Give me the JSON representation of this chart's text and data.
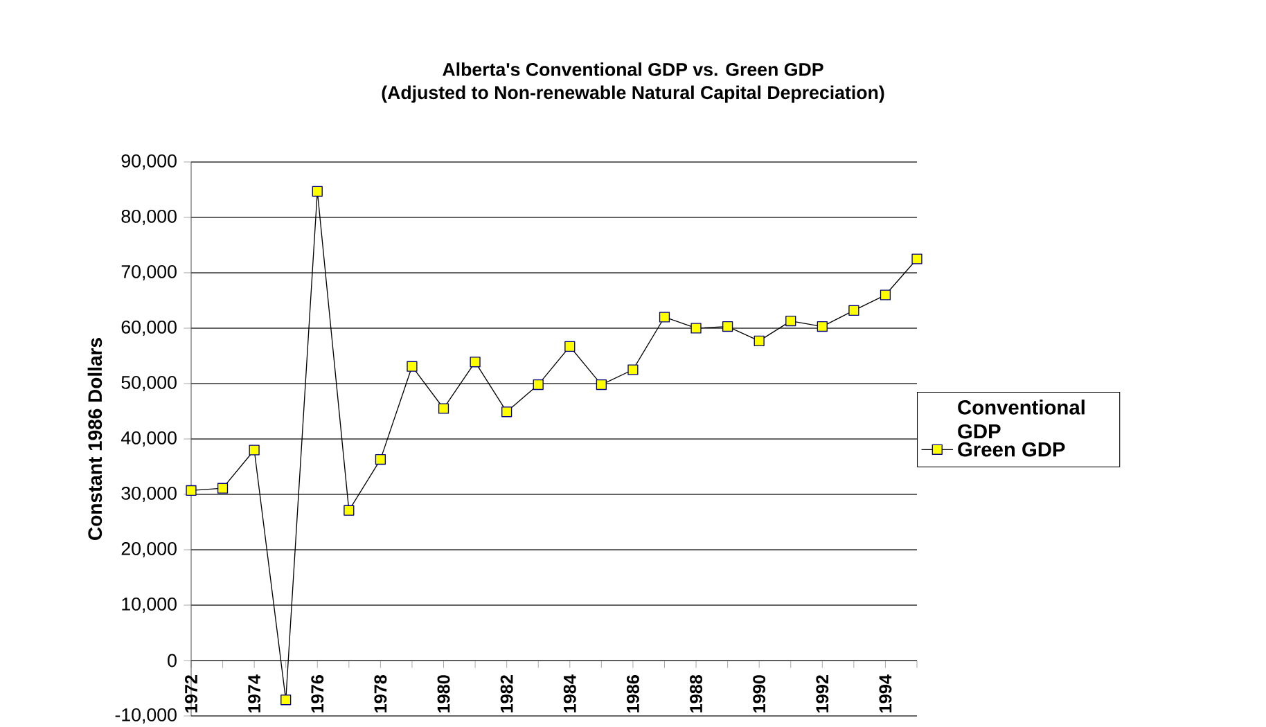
{
  "chart_data": {
    "type": "line",
    "title": "Alberta's Conventional GDP vs. Green GDP",
    "subtitle": "(Adjusted to Non-renewable Natural Capital Depreciation)",
    "ylabel": "Constant 1986 Dollars",
    "categories": [
      "1972",
      null,
      "1974",
      null,
      "1976",
      null,
      "1978",
      null,
      "1980",
      null,
      "1982",
      null,
      "1984",
      null,
      "1986",
      null,
      "1988",
      null,
      "1990",
      null,
      "1992",
      null,
      "1994",
      null
    ],
    "series": [
      {
        "name": "Conventional GDP",
        "values": [
          null,
          null,
          null,
          null,
          null,
          null,
          null,
          null,
          null,
          null,
          null,
          null,
          null,
          null,
          null,
          null,
          null,
          null,
          null,
          null,
          null,
          null,
          null,
          null
        ]
      },
      {
        "name": "Green GDP",
        "color": "#ffff00",
        "values": [
          30700,
          31100,
          38000,
          -7100,
          84700,
          27100,
          36300,
          53100,
          45500,
          53900,
          44900,
          49800,
          56700,
          49800,
          52500,
          62000,
          60000,
          60300,
          57700,
          61300,
          60300,
          63200,
          66000,
          72500
        ]
      }
    ],
    "ylim": [
      -10000,
      90000
    ],
    "yticks": [
      {
        "value": -10000,
        "label": "-10,000"
      },
      {
        "value": 0,
        "label": "0"
      },
      {
        "value": 10000,
        "label": "10,000"
      },
      {
        "value": 20000,
        "label": "20,000"
      },
      {
        "value": 30000,
        "label": "30,000"
      },
      {
        "value": 40000,
        "label": "40,000"
      },
      {
        "value": 50000,
        "label": "50,000"
      },
      {
        "value": 60000,
        "label": "60,000"
      },
      {
        "value": 70000,
        "label": "70,000"
      },
      {
        "value": 80000,
        "label": "80,000"
      },
      {
        "value": 90000,
        "label": "90,000"
      }
    ],
    "grid": "y",
    "legend": "right",
    "marker": "square",
    "line_style": "solid"
  }
}
